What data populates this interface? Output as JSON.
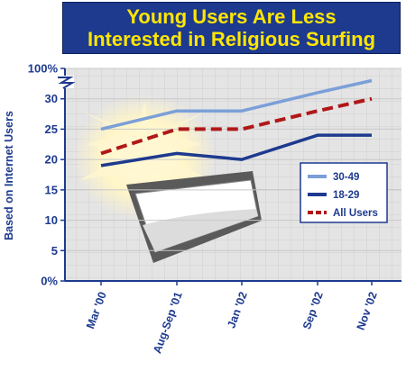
{
  "chart_data": {
    "type": "line",
    "title_line1": "Young Users Are Less",
    "title_line2": "Interested in Religious Surfing",
    "ylabel": "Based on Internet Users",
    "categories": [
      "Mar '00",
      "Aug-Sep '01",
      "Jan '02",
      "Sep '02",
      "Nov '02"
    ],
    "y_ticks": [
      "0%",
      "5",
      "10",
      "15",
      "20",
      "25",
      "30",
      "100%"
    ],
    "ylim": [
      0,
      35
    ],
    "axis_break": true,
    "grid": true,
    "legend_position": "center-right",
    "series": [
      {
        "name": "30-49",
        "values": [
          25,
          28,
          28,
          31,
          33
        ],
        "color": "#7b9fd8",
        "dash": false
      },
      {
        "name": "18-29",
        "values": [
          19,
          21,
          20,
          24,
          24
        ],
        "color": "#1d3a8f",
        "dash": false
      },
      {
        "name": "All Users",
        "values": [
          21,
          25,
          25,
          28,
          30
        ],
        "color": "#b01818",
        "dash": true
      }
    ]
  }
}
